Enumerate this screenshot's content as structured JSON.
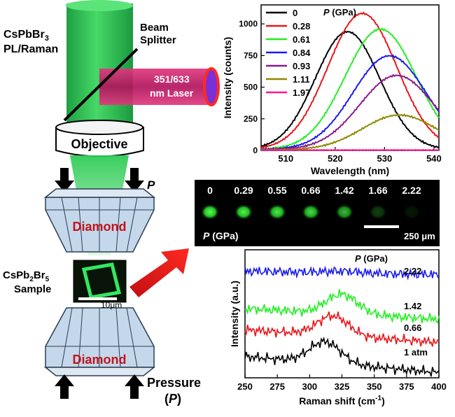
{
  "schematic": {
    "title_line1": "CsPbBr",
    "title_sub1": "3",
    "title_line2": "PL/Raman",
    "beam_splitter_line1": "Beam",
    "beam_splitter_line2": "Splitter",
    "laser_line1": "351/633",
    "laser_line2": "nm Laser",
    "objective": "Objective",
    "pressure_arrow_label": "P",
    "diamond_top": "Diamond",
    "diamond_bottom": "Diamond",
    "sample_line1_a": "CsPb",
    "sample_sub_a": "2",
    "sample_line1_b": "Br",
    "sample_sub_b": "5",
    "sample_line2": "Sample",
    "scale_bar": "10μm",
    "pressure_line1": "Pressure",
    "pressure_line2_open": "(",
    "pressure_line2_p": "P",
    "pressure_line2_close": ")",
    "colors": {
      "beam": "#2ecc55",
      "laser": "#c0186b",
      "arrow": "#e8161b",
      "diamond": "#b8d0e6"
    }
  },
  "micrographs": {
    "pressures": [
      "0",
      "0.29",
      "0.55",
      "0.66",
      "1.42",
      "1.66",
      "2.22"
    ],
    "brightness": [
      1.0,
      0.95,
      0.9,
      0.85,
      0.7,
      0.25,
      0.1
    ],
    "p_label_italic": "P",
    "p_label_unit": " (GPa)",
    "scale_bar": "250 μm"
  },
  "chart_data": [
    {
      "type": "line",
      "xlabel": "Wavelength (nm)",
      "ylabel": "Intensity (counts)",
      "xlim": [
        505,
        541
      ],
      "ylim": [
        0,
        1150
      ],
      "x_ticks": [
        510,
        520,
        530,
        540
      ],
      "y_ticks": [
        0,
        250,
        500,
        750,
        1000
      ],
      "legend_title_italic": "P",
      "legend_title_unit": " (GPa)",
      "series": [
        {
          "name": "0",
          "color": "#000000",
          "peak_x": 522.5,
          "peak_y": 930,
          "sigma": 6.5,
          "base": 8
        },
        {
          "name": "0.28",
          "color": "#e8161b",
          "peak_x": 525.5,
          "peak_y": 1075,
          "sigma": 7.0,
          "base": 8
        },
        {
          "name": "0.61",
          "color": "#22ee22",
          "peak_x": 529.2,
          "peak_y": 950,
          "sigma": 7.2,
          "base": 8
        },
        {
          "name": "0.84",
          "color": "#1a1aee",
          "peak_x": 531.0,
          "peak_y": 740,
          "sigma": 7.4,
          "base": 8
        },
        {
          "name": "0.93",
          "color": "#8b1a8b",
          "peak_x": 532.5,
          "peak_y": 585,
          "sigma": 7.5,
          "base": 8
        },
        {
          "name": "1.11",
          "color": "#8b8b00",
          "peak_x": 533.0,
          "peak_y": 275,
          "sigma": 7.5,
          "base": 5
        },
        {
          "name": "1.97",
          "color": "#ff1493",
          "peak_x": 533.0,
          "peak_y": 0,
          "sigma": 7.5,
          "base": 3
        }
      ]
    },
    {
      "type": "line",
      "xlabel": "Raman shift (cm",
      "xlabel_sup": "-1",
      "xlabel_close": ")",
      "ylabel": "Intensity (a.u.)",
      "xlim": [
        250,
        400
      ],
      "x_ticks": [
        250,
        275,
        300,
        325,
        350,
        375,
        400
      ],
      "legend_title_italic": "P",
      "legend_title_unit": " (GPa)",
      "series": [
        {
          "name": "2.22",
          "color": "#1a1aee",
          "offset": 3.0,
          "peak_x": 325,
          "peak_h": 0.05,
          "slope": -0.1
        },
        {
          "name": "1.42",
          "color": "#22ee22",
          "offset": 1.95,
          "peak_x": 325,
          "peak_h": 0.55,
          "slope": -0.3
        },
        {
          "name": "0.66",
          "color": "#e8161b",
          "offset": 1.35,
          "peak_x": 318,
          "peak_h": 0.55,
          "slope": -0.35
        },
        {
          "name": "1 atm",
          "color": "#000000",
          "offset": 0.6,
          "peak_x": 312,
          "peak_h": 0.6,
          "slope": -0.45
        }
      ]
    }
  ]
}
